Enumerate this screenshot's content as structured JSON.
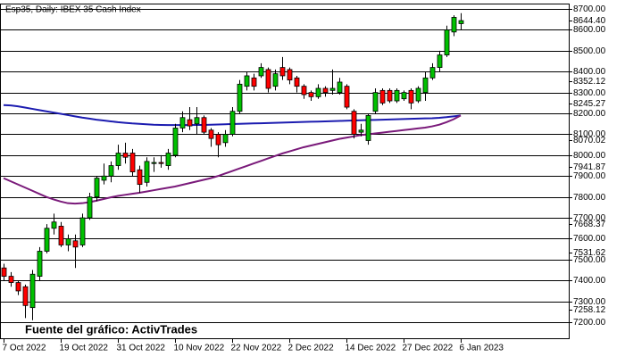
{
  "chart_data": {
    "type": "candlestick",
    "title": "Esp35, Daily:  IBEX 35 Cash Index",
    "annotation": "Fuente del gráfico: ActivTrades",
    "categories": [
      "7 Oct 2022",
      null,
      null,
      null,
      null,
      null,
      null,
      null,
      "19 Oct 2022",
      null,
      null,
      null,
      null,
      null,
      null,
      null,
      "31 Oct 2022",
      null,
      null,
      null,
      null,
      null,
      null,
      null,
      "10 Nov 2022",
      null,
      null,
      null,
      null,
      null,
      null,
      null,
      "22 Nov 2022",
      null,
      null,
      null,
      null,
      null,
      null,
      null,
      "2 Dec 2022",
      null,
      null,
      null,
      null,
      null,
      null,
      null,
      "14 Dec 2022",
      null,
      null,
      null,
      null,
      null,
      null,
      null,
      "27 Dec 2022",
      null,
      null,
      null,
      null,
      null,
      null,
      null,
      "6 Jan 2023"
    ],
    "open": [
      7460,
      7420,
      7390,
      7370,
      7270,
      7420,
      7540,
      7650,
      7660,
      7570,
      7590,
      7570,
      7700,
      7800,
      7880,
      7900,
      7950,
      8010,
      8010,
      7930,
      7870,
      7960,
      7965,
      7950,
      8000,
      8130,
      8170,
      8150,
      8180,
      8120,
      8100,
      8060,
      8100,
      8210,
      8330,
      8370,
      8380,
      8410,
      8330,
      8420,
      8410,
      8370,
      8330,
      8300,
      8280,
      8320,
      8310,
      8300,
      8330,
      8210,
      8110,
      8070,
      8210,
      8310,
      8310,
      8260,
      8270,
      8310,
      8260,
      8300,
      8370,
      8420,
      8480,
      8590,
      8630
    ],
    "high": [
      7480,
      7440,
      7400,
      7380,
      7450,
      7560,
      7670,
      7720,
      7680,
      7620,
      7620,
      7720,
      7820,
      7900,
      7960,
      7970,
      8050,
      8060,
      8030,
      7950,
      7990,
      7990,
      8000,
      8030,
      8150,
      8210,
      8230,
      8230,
      8190,
      8130,
      8110,
      8120,
      8230,
      8360,
      8400,
      8390,
      8440,
      8420,
      8410,
      8470,
      8420,
      8380,
      8340,
      8310,
      8340,
      8330,
      8410,
      8370,
      8340,
      8220,
      8150,
      8200,
      8320,
      8320,
      8320,
      8320,
      8310,
      8320,
      8330,
      8400,
      8440,
      8500,
      8620,
      8670,
      8680
    ],
    "low": [
      7400,
      7370,
      7330,
      7220,
      7210,
      7400,
      7530,
      7620,
      7560,
      7540,
      7460,
      7560,
      7690,
      7780,
      7860,
      7870,
      7930,
      7960,
      7900,
      7820,
      7850,
      7920,
      7940,
      7930,
      7990,
      8110,
      8120,
      8100,
      8100,
      8040,
      7990,
      8040,
      8090,
      8200,
      8310,
      8310,
      8370,
      8300,
      8310,
      8360,
      8340,
      8300,
      8270,
      8260,
      8270,
      8280,
      8290,
      8290,
      8220,
      8080,
      8090,
      8050,
      8200,
      8240,
      8250,
      8250,
      8260,
      8220,
      8250,
      8260,
      8360,
      8400,
      8470,
      8570,
      8600
    ],
    "close": [
      7420,
      7390,
      7350,
      7280,
      7430,
      7540,
      7650,
      7680,
      7570,
      7600,
      7560,
      7700,
      7800,
      7890,
      7900,
      7950,
      8010,
      7990,
      7920,
      7860,
      7970,
      7965,
      7960,
      8010,
      8130,
      8180,
      8140,
      8180,
      8110,
      8080,
      8050,
      8100,
      8210,
      8340,
      8380,
      8330,
      8420,
      8320,
      8390,
      8380,
      8360,
      8330,
      8290,
      8280,
      8320,
      8300,
      8320,
      8350,
      8230,
      8100,
      8120,
      8190,
      8300,
      8250,
      8260,
      8310,
      8300,
      8250,
      8320,
      8370,
      8420,
      8480,
      8600,
      8660,
      8644.4
    ],
    "up_color": "#00c000",
    "down_color": "#ff0000",
    "series": [
      {
        "color": "#1c1cb0",
        "values": [
          8240,
          8238,
          8234,
          8228,
          8222,
          8216,
          8210,
          8204,
          8198,
          8192,
          8186,
          8180,
          8175,
          8170,
          8166,
          8162,
          8158,
          8155,
          8152,
          8150,
          8148,
          8146,
          8145,
          8144,
          8144,
          8144,
          8144,
          8145,
          8145,
          8146,
          8147,
          8148,
          8149,
          8150,
          8151,
          8152,
          8153,
          8154,
          8155,
          8156,
          8157,
          8158,
          8159,
          8160,
          8161,
          8162,
          8163,
          8164,
          8165,
          8166,
          8167,
          8168,
          8169,
          8170,
          8171,
          8172,
          8173,
          8174,
          8175,
          8176,
          8177,
          8179,
          8182,
          8186,
          8190
        ]
      },
      {
        "color": "#7a1a7a",
        "values": [
          7890,
          7875,
          7860,
          7845,
          7830,
          7815,
          7800,
          7788,
          7778,
          7770,
          7768,
          7770,
          7775,
          7782,
          7790,
          7798,
          7805,
          7810,
          7815,
          7820,
          7826,
          7832,
          7838,
          7844,
          7850,
          7858,
          7866,
          7874,
          7882,
          7890,
          7900,
          7912,
          7924,
          7936,
          7948,
          7960,
          7972,
          7984,
          7996,
          8008,
          8018,
          8028,
          8038,
          8046,
          8054,
          8062,
          8070,
          8078,
          8084,
          8090,
          8096,
          8100,
          8104,
          8108,
          8112,
          8116,
          8120,
          8124,
          8128,
          8132,
          8138,
          8146,
          8158,
          8172,
          8190
        ]
      }
    ],
    "ylim": [
      7119,
      8726
    ],
    "yticks": [
      {
        "value": 8700,
        "label": "8700.00"
      },
      {
        "value": 8644.4,
        "label": "8644.40"
      },
      {
        "value": 8600,
        "label": "8600.00"
      },
      {
        "value": 8500,
        "label": "8500.00"
      },
      {
        "value": 8400,
        "label": "8400.00"
      },
      {
        "value": 8352.12,
        "label": "8352.12"
      },
      {
        "value": 8300,
        "label": "8300.00"
      },
      {
        "value": 8245.27,
        "label": "8245.27"
      },
      {
        "value": 8200,
        "label": "8200.00"
      },
      {
        "value": 8100,
        "label": "8100.00"
      },
      {
        "value": 8070.02,
        "label": "8070.02"
      },
      {
        "value": 8000,
        "label": "8000.00"
      },
      {
        "value": 7941.87,
        "label": "7941.87"
      },
      {
        "value": 7900,
        "label": "7900.00"
      },
      {
        "value": 7800,
        "label": "7800.00"
      },
      {
        "value": 7700,
        "label": "7700.00"
      },
      {
        "value": 7668.37,
        "label": "7668.37"
      },
      {
        "value": 7600,
        "label": "7600.00"
      },
      {
        "value": 7531.62,
        "label": "7531.62"
      },
      {
        "value": 7500,
        "label": "7500.00"
      },
      {
        "value": 7400,
        "label": "7400.00"
      },
      {
        "value": 7300,
        "label": "7300.00"
      },
      {
        "value": 7258.12,
        "label": "7258.12"
      },
      {
        "value": 7200,
        "label": "7200.00"
      }
    ],
    "grid": true
  }
}
